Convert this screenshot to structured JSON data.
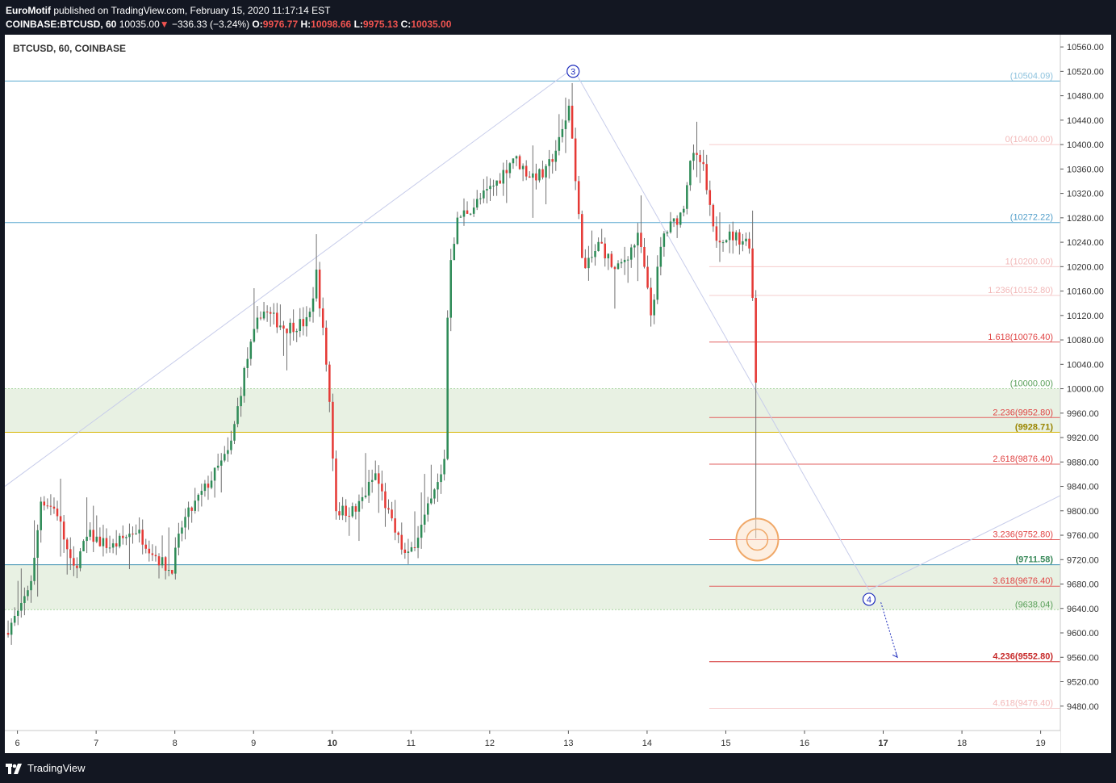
{
  "header": {
    "author": "EuroMotif",
    "publish_text": " published on TradingView.com, February 15, 2020 11:17:14 EST",
    "symbol": "COINBASE:BTCUSD, 60",
    "last": "10035.00",
    "change_arrow": "▼",
    "change": "−336.33 (−3.24%)",
    "o_label": "O:",
    "o": "9976.77",
    "h_label": "H:",
    "h": "10098.66",
    "l_label": "L:",
    "l": "9975.13",
    "c_label": "C:",
    "c": "10035.00"
  },
  "footer": {
    "brand": "TradingView",
    "logo": "tradingview-logo-icon"
  },
  "colors": {
    "up": "#2e8b57",
    "down": "#e53935",
    "wick": "#707070",
    "zone": "#e8f1e3",
    "hline": "#5aa9d0",
    "yellow": "#d6b400",
    "fib_faint": "#f3bfbf",
    "fib": "#e04444",
    "wave": "#1e2dbd"
  },
  "chart_data": {
    "type": "candlestick",
    "title": "BTCUSD, 60, COINBASE",
    "ylim": [
      9440,
      10580
    ],
    "y_ticks": [
      "10560.00",
      "10520.00",
      "10480.00",
      "10440.00",
      "10400.00",
      "10360.00",
      "10320.00",
      "10280.00",
      "10240.00",
      "10200.00",
      "10160.00",
      "10120.00",
      "10080.00",
      "10040.00",
      "10000.00",
      "9960.00",
      "9920.00",
      "9880.00",
      "9840.00",
      "9800.00",
      "9760.00",
      "9720.00",
      "9680.00",
      "9640.00",
      "9600.00",
      "9560.00",
      "9520.00",
      "9480.00"
    ],
    "x_ticks": [
      {
        "label": "6",
        "day": 6,
        "bold": false
      },
      {
        "label": "7",
        "day": 7,
        "bold": false
      },
      {
        "label": "8",
        "day": 8,
        "bold": false
      },
      {
        "label": "9",
        "day": 9,
        "bold": false
      },
      {
        "label": "10",
        "day": 10,
        "bold": true
      },
      {
        "label": "11",
        "day": 11,
        "bold": false
      },
      {
        "label": "12",
        "day": 12,
        "bold": false
      },
      {
        "label": "13",
        "day": 13,
        "bold": false
      },
      {
        "label": "14",
        "day": 14,
        "bold": false
      },
      {
        "label": "15",
        "day": 15,
        "bold": false
      },
      {
        "label": "16",
        "day": 16,
        "bold": false
      },
      {
        "label": "17",
        "day": 17,
        "bold": true
      },
      {
        "label": "18",
        "day": 18,
        "bold": false
      },
      {
        "label": "19",
        "day": 19,
        "bold": false
      }
    ],
    "x_range_days": [
      5.84,
      19.25
    ],
    "price_path": [
      [
        5.84,
        9600
      ],
      [
        6.05,
        9640
      ],
      [
        6.2,
        9700
      ],
      [
        6.3,
        9820
      ],
      [
        6.5,
        9800
      ],
      [
        6.7,
        9700
      ],
      [
        6.9,
        9760
      ],
      [
        7.2,
        9740
      ],
      [
        7.5,
        9770
      ],
      [
        7.8,
        9720
      ],
      [
        7.95,
        9700
      ],
      [
        8.1,
        9780
      ],
      [
        8.3,
        9820
      ],
      [
        8.5,
        9860
      ],
      [
        8.7,
        9900
      ],
      [
        8.9,
        10040
      ],
      [
        9.1,
        10130
      ],
      [
        9.4,
        10100
      ],
      [
        9.7,
        10110
      ],
      [
        9.8,
        10190
      ],
      [
        9.95,
        10010
      ],
      [
        10.05,
        9800
      ],
      [
        10.3,
        9800
      ],
      [
        10.55,
        9860
      ],
      [
        10.75,
        9780
      ],
      [
        10.95,
        9720
      ],
      [
        11.15,
        9780
      ],
      [
        11.3,
        9830
      ],
      [
        11.42,
        9870
      ],
      [
        11.48,
        10200
      ],
      [
        11.6,
        10280
      ],
      [
        11.8,
        10300
      ],
      [
        12.1,
        10340
      ],
      [
        12.3,
        10380
      ],
      [
        12.5,
        10350
      ],
      [
        12.7,
        10350
      ],
      [
        12.9,
        10410
      ],
      [
        13.02,
        10470
      ],
      [
        13.1,
        10320
      ],
      [
        13.2,
        10190
      ],
      [
        13.4,
        10240
      ],
      [
        13.6,
        10190
      ],
      [
        13.9,
        10250
      ],
      [
        14.05,
        10120
      ],
      [
        14.2,
        10250
      ],
      [
        14.45,
        10290
      ],
      [
        14.55,
        10380
      ],
      [
        14.7,
        10370
      ],
      [
        14.85,
        10250
      ],
      [
        15.1,
        10250
      ],
      [
        15.3,
        10240
      ],
      [
        15.4,
        10010
      ]
    ],
    "horizontal_levels": [
      {
        "value": 10504.09,
        "label": "(10504.09)",
        "style": "hline_faint"
      },
      {
        "value": 10272.22,
        "label": "(10272.22)",
        "style": "hline"
      },
      {
        "value": 10000.0,
        "label": "(10000.00)",
        "style": "green"
      },
      {
        "value": 9928.71,
        "label": "(9928.71)",
        "style": "yellow"
      },
      {
        "value": 9711.58,
        "label": "(9711.58)",
        "style": "teal"
      },
      {
        "value": 9638.04,
        "label": "(9638.04)",
        "style": "green"
      }
    ],
    "zones": [
      {
        "from": 9928.71,
        "to": 10000.0
      },
      {
        "from": 9638.04,
        "to": 9711.58
      }
    ],
    "fib_levels": [
      {
        "ratio": "0",
        "value": 10400.0,
        "label": "0(10400.00)",
        "strength": "faint"
      },
      {
        "ratio": "1",
        "value": 10200.0,
        "label": "1(10200.00)",
        "strength": "faint"
      },
      {
        "ratio": "1.236",
        "value": 10152.8,
        "label": "1.236(10152.80)",
        "strength": "faint"
      },
      {
        "ratio": "1.618",
        "value": 10076.4,
        "label": "1.618(10076.40)",
        "strength": "medium"
      },
      {
        "ratio": "2.236",
        "value": 9952.8,
        "label": "2.236(9952.80)",
        "strength": "medium"
      },
      {
        "ratio": "2.618",
        "value": 9876.4,
        "label": "2.618(9876.40)",
        "strength": "medium"
      },
      {
        "ratio": "3.236",
        "value": 9752.8,
        "label": "3.236(9752.80)",
        "strength": "medium"
      },
      {
        "ratio": "3.618",
        "value": 9676.4,
        "label": "3.618(9676.40)",
        "strength": "medium"
      },
      {
        "ratio": "4.236",
        "value": 9552.8,
        "label": "4.236(9552.80)",
        "strength": "strong"
      },
      {
        "ratio": "4.618",
        "value": 9476.4,
        "label": "4.618(9476.40)",
        "strength": "faint"
      }
    ],
    "fib_start_day": 14.79,
    "wave_labels": [
      {
        "label": "3",
        "day": 13.06,
        "price": 10520
      },
      {
        "label": "4",
        "day": 16.82,
        "price": 9655
      }
    ],
    "wave_lines": [
      [
        [
          5.84,
          9840
        ],
        [
          13.06,
          10525
        ],
        [
          16.82,
          9670
        ],
        [
          19.25,
          9825
        ]
      ]
    ],
    "projection": [
      [
        16.97,
        9650
      ],
      [
        17.18,
        9560
      ]
    ],
    "highlight_circle": {
      "day": 15.4,
      "price": 9752.8
    },
    "last_candle_low_day": 15.4,
    "last_candle_low": 9755
  }
}
